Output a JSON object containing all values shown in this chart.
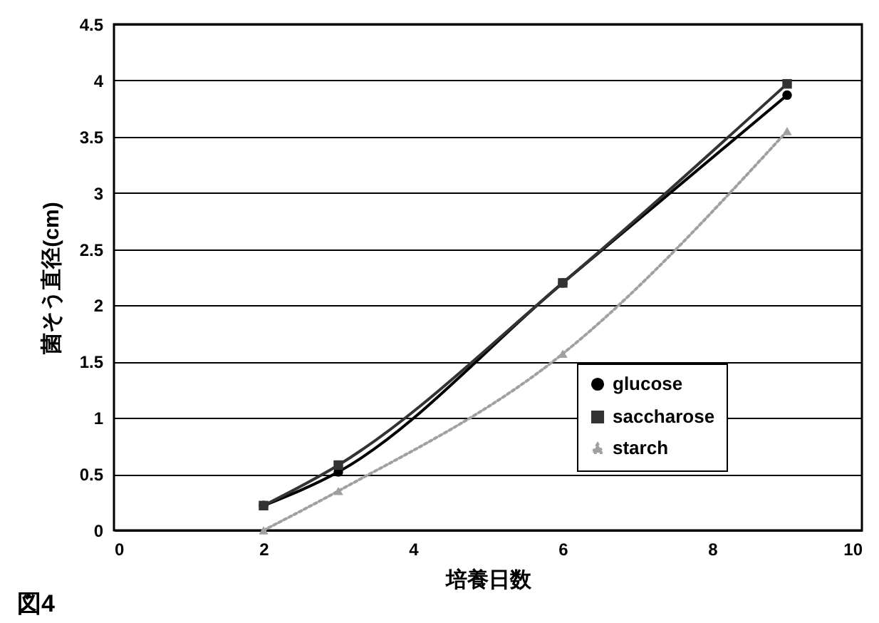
{
  "chart_data": {
    "type": "line",
    "xlabel": "培養日数",
    "ylabel": "菌そう直径(cm)",
    "annotations": [
      "図4"
    ],
    "x": [
      2,
      3,
      6,
      9
    ],
    "series": [
      {
        "name": "glucose",
        "color": "#000000",
        "marker": "circle",
        "line_style": "solid",
        "values": [
          0.22,
          0.52,
          2.2,
          3.87
        ]
      },
      {
        "name": "saccharose",
        "color": "#333333",
        "marker": "square",
        "line_style": "solid",
        "values": [
          0.22,
          0.58,
          2.2,
          3.97
        ]
      },
      {
        "name": "starch",
        "color": "#a0a0a0",
        "marker": "triangle",
        "line_style": "dotted",
        "values": [
          0,
          0.35,
          1.57,
          3.55
        ]
      }
    ],
    "xlim": [
      0,
      10
    ],
    "xticks": [
      0,
      2,
      4,
      6,
      8,
      10
    ],
    "ylim": [
      0,
      4.5
    ],
    "yticks": [
      0,
      0.5,
      1,
      1.5,
      2,
      2.5,
      3,
      3.5,
      4,
      4.5
    ],
    "grid": "y",
    "legend": "bottom right"
  }
}
